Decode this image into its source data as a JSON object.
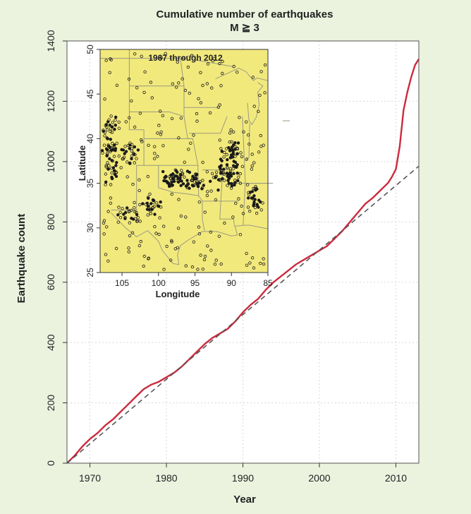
{
  "chart_data": [
    {
      "type": "line",
      "title": "Cumulative number of earthquakes",
      "subtitle": "M ≧ 3",
      "xlabel": "Year",
      "ylabel": "Earthquake count",
      "xlim": [
        1967,
        2013
      ],
      "ylim": [
        0,
        1400
      ],
      "x_ticks": [
        1970,
        1980,
        1990,
        2000,
        2010
      ],
      "y_ticks": [
        0,
        200,
        400,
        600,
        800,
        1000,
        1200,
        1400
      ],
      "grid": true,
      "colors": {
        "background": "#ebf3df",
        "plot_background": "#ffffff",
        "series": "#cc2a3d",
        "trend": "#555555"
      },
      "series": [
        {
          "style": "solid",
          "x": [
            1967,
            1968,
            1969,
            1970,
            1971,
            1972,
            1973,
            1974,
            1975,
            1976,
            1977,
            1978,
            1979,
            1980,
            1981,
            1982,
            1983,
            1984,
            1985,
            1986,
            1987,
            1988,
            1989,
            1990,
            1991,
            1992,
            1993,
            1994,
            1995,
            1996,
            1997,
            1998,
            1999,
            2000,
            2001,
            2002,
            2003,
            2004,
            2005,
            2006,
            2007,
            2008,
            2009,
            2009.5,
            2010,
            2010.5,
            2011,
            2011.5,
            2012,
            2012.5,
            2013
          ],
          "y": [
            0,
            25,
            55,
            80,
            100,
            125,
            145,
            170,
            195,
            220,
            245,
            260,
            270,
            285,
            300,
            320,
            345,
            370,
            395,
            415,
            430,
            445,
            470,
            500,
            525,
            545,
            575,
            600,
            620,
            640,
            660,
            675,
            690,
            705,
            720,
            745,
            770,
            800,
            830,
            860,
            880,
            905,
            930,
            950,
            975,
            1050,
            1170,
            1230,
            1280,
            1320,
            1340
          ]
        },
        {
          "style": "dashed",
          "x": [
            1967,
            2013
          ],
          "y": [
            0,
            985
          ]
        }
      ]
    },
    {
      "type": "scatter",
      "title": "1967 through 2012",
      "xlabel": "Longitude",
      "ylabel": "Latitude",
      "xlim": [
        108,
        85
      ],
      "ylim": [
        25,
        50
      ],
      "x_ticks": [
        105,
        100,
        95,
        90,
        85
      ],
      "y_ticks": [
        25,
        30,
        35,
        40,
        45,
        50
      ],
      "colors": {
        "background": "#f2e97d",
        "points": "#1a1a1a",
        "borders": "#9a9a80"
      }
    }
  ]
}
